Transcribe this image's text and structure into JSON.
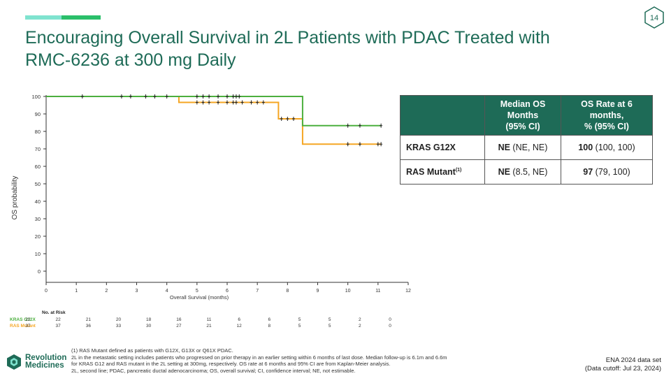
{
  "page_number": "14",
  "title_lines": [
    "Encouraging Overall Survival in 2L Patients with PDAC Treated with",
    "RMC-6236 at 300 mg Daily"
  ],
  "colors": {
    "brand": "#1e6b57",
    "kras_g12x": "#4caf3e",
    "ras_mutant": "#f5a623",
    "accent_light": "#7fe3cf",
    "accent_dark": "#2bbf6a"
  },
  "chart_data": {
    "type": "line",
    "step": true,
    "xlabel": "Overall Survival (months)",
    "ylabel": "OS probability",
    "xlim": [
      0,
      12
    ],
    "ylim": [
      0,
      100
    ],
    "x_ticks": [
      0,
      1,
      2,
      3,
      4,
      5,
      6,
      7,
      8,
      9,
      10,
      11,
      12
    ],
    "y_ticks": [
      0,
      10,
      20,
      30,
      40,
      50,
      60,
      70,
      80,
      90,
      100
    ],
    "grid": false,
    "series": [
      {
        "name": "KRAS G12X",
        "color": "#4caf3e",
        "steps": [
          [
            0,
            100
          ],
          [
            8.5,
            100
          ],
          [
            8.5,
            83.3
          ],
          [
            11.1,
            83.3
          ]
        ],
        "censored_x": [
          1.2,
          2.5,
          2.8,
          3.3,
          3.6,
          4.0,
          5.0,
          5.2,
          5.4,
          5.7,
          6.0,
          6.2,
          6.3,
          6.4,
          10.0,
          10.4,
          11.1
        ]
      },
      {
        "name": "RAS Mutant",
        "color": "#f5a623",
        "steps": [
          [
            0,
            100
          ],
          [
            4.4,
            100
          ],
          [
            4.4,
            96.6
          ],
          [
            7.7,
            96.6
          ],
          [
            7.7,
            87.2
          ],
          [
            8.5,
            87.2
          ],
          [
            8.5,
            72.7
          ],
          [
            11.1,
            72.7
          ]
        ],
        "censored_x_at_100": [
          1.2,
          2.5,
          2.8,
          3.3,
          3.6,
          4.0
        ],
        "censored_x_at_96_6": [
          5.0,
          5.2,
          5.4,
          5.7,
          6.0,
          6.2,
          6.3,
          6.5,
          6.8,
          7.0,
          7.2
        ],
        "censored_x_at_87_2": [
          7.8,
          8.0,
          8.2
        ],
        "censored_x_at_72_7": [
          10.0,
          10.4,
          11.0,
          11.1
        ]
      }
    ],
    "at_risk": {
      "label": "No. at Risk",
      "rows": [
        {
          "name": "KRAS G12X",
          "color": "#4caf3e",
          "values": [
            "22",
            "22",
            "21",
            "20",
            "18",
            "16",
            "11",
            "6",
            "6",
            "5",
            "5",
            "2",
            "0"
          ]
        },
        {
          "name": "RAS Mutant",
          "color": "#f5a623",
          "values": [
            "37",
            "37",
            "36",
            "33",
            "30",
            "27",
            "21",
            "12",
            "8",
            "5",
            "5",
            "2",
            "0"
          ]
        }
      ]
    }
  },
  "table": {
    "headers": [
      "",
      "Median OS\nMonths\n(95% CI)",
      "OS Rate at 6\nmonths,\n% (95% CI)"
    ],
    "header_lines": [
      [],
      [
        "Median OS",
        "Months",
        "(95% CI)"
      ],
      [
        "OS Rate at 6",
        "months,",
        "% (95% CI)"
      ]
    ],
    "rows": [
      {
        "label": "KRAS G12X",
        "sup": "",
        "median_bold": "NE",
        "median_ci": " (NE, NE)",
        "rate_bold": "100",
        "rate_ci": " (100, 100)"
      },
      {
        "label": "RAS Mutant",
        "sup": "(1)",
        "median_bold": "NE",
        "median_ci": " (8.5, NE)",
        "rate_bold": "97",
        "rate_ci": " (79, 100)"
      }
    ]
  },
  "footnotes": [
    "(1) RAS Mutant defined as patients with G12X, G13X or Q61X PDAC.",
    "2L in the metastatic setting includes patients who progressed on prior therapy in an earlier setting within 6 months of last dose. Median follow-up is 6.1m and 6.6m",
    "for KRAS G12 and RAS mutant in the 2L setting at 300mg, respectively. OS rate at 6 months and 95% CI are from Kaplan-Meier analysis.",
    "2L, second line; PDAC, pancreatic ductal adenocarcinoma; OS, overall survival; CI, confidence interval; NE, not estimable."
  ],
  "logo": {
    "line1": "Revolution",
    "line2": "Medicines"
  },
  "data_set": {
    "line1": "ENA 2024 data set",
    "line2": "(Data cutoff: Jul 23, 2024)"
  }
}
